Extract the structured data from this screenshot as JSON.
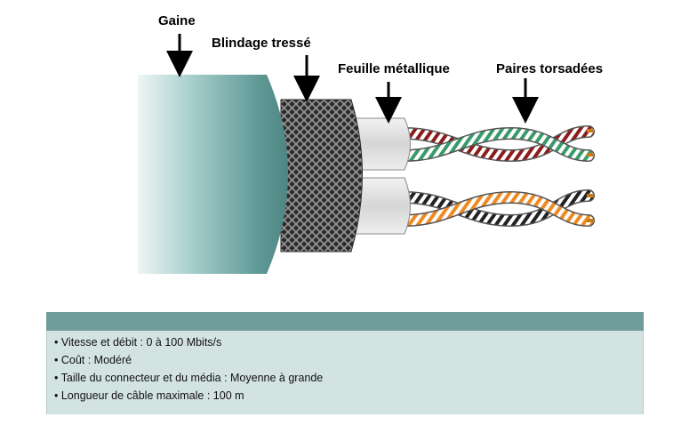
{
  "labels": {
    "jacket": "Gaine",
    "braid": "Blindage tressé",
    "foil": "Feuille métallique",
    "pairs": "Paires torsadées"
  },
  "info": [
    "• Vitesse et débit : 0 à 100 Mbits/s",
    "• Coût : Modéré",
    "• Taille du connecteur et du média :  Moyenne à grande",
    "• Longueur de câble maximale :  100 m"
  ],
  "colors": {
    "jacket": "#5f9a97",
    "panel_header": "#6f9b9a",
    "panel_body": "#d3e3e2",
    "pair1_wire_a": "#8b1c1c",
    "pair1_wire_b": "#3a9a6a",
    "pair2_wire_a": "#ee8a22",
    "pair2_wire_b": "#222222",
    "copper": "#c97a12"
  }
}
